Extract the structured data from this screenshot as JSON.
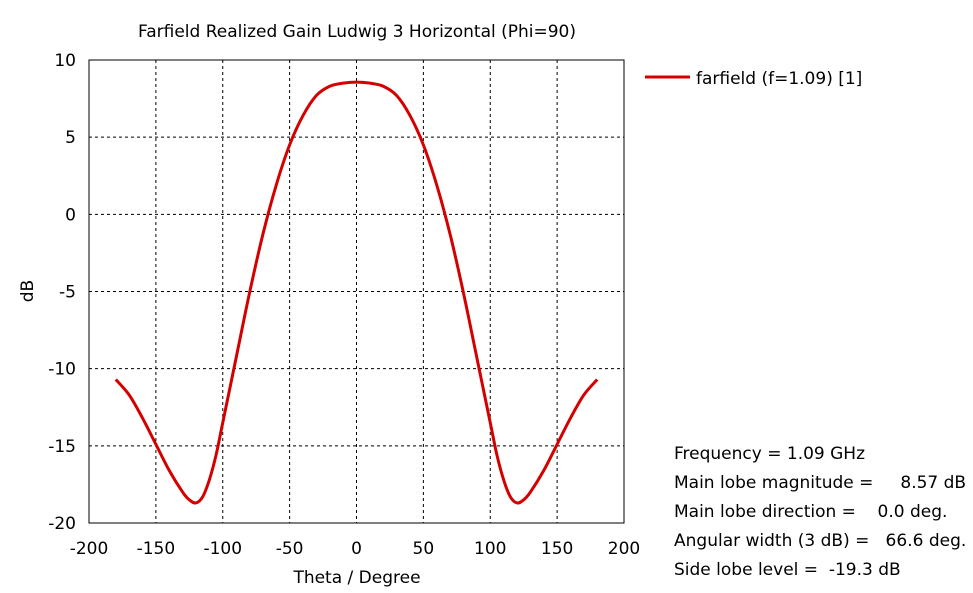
{
  "chart_data": {
    "type": "line",
    "title": "Farfield Realized Gain Ludwig 3 Horizontal (Phi=90)",
    "xlabel": "Theta / Degree",
    "ylabel": "dB",
    "xlim": [
      -200,
      200
    ],
    "ylim": [
      -20,
      10
    ],
    "xticks": [
      -200,
      -150,
      -100,
      -50,
      0,
      50,
      100,
      150,
      200
    ],
    "yticks": [
      10,
      5,
      0,
      -5,
      -10,
      -15,
      -20
    ],
    "xtick_labels": [
      "-200",
      "-150",
      "-100",
      "-50",
      "0",
      "50",
      "100",
      "150",
      "200"
    ],
    "ytick_labels": [
      "10",
      "5",
      "0",
      "-5",
      "-10",
      "-15",
      "-20"
    ],
    "grid": true,
    "legend_position": "top-right",
    "series": [
      {
        "name": "farfield (f=1.09) [1]",
        "color": "#d40000",
        "x": [
          -180,
          -170,
          -160,
          -150,
          -140,
          -130,
          -125,
          -120,
          -115,
          -110,
          -105,
          -100,
          -90,
          -80,
          -70,
          -60,
          -50,
          -40,
          -30,
          -20,
          -10,
          0,
          10,
          20,
          30,
          40,
          50,
          60,
          70,
          80,
          90,
          100,
          105,
          110,
          115,
          120,
          125,
          130,
          140,
          150,
          160,
          170,
          180
        ],
        "y": [
          -10.7,
          -11.7,
          -13.2,
          -14.9,
          -16.6,
          -18.0,
          -18.5,
          -18.7,
          -18.3,
          -17.2,
          -15.6,
          -13.5,
          -9.3,
          -5.1,
          -1.3,
          1.9,
          4.5,
          6.4,
          7.7,
          8.3,
          8.5,
          8.57,
          8.5,
          8.3,
          7.7,
          6.4,
          4.5,
          1.9,
          -1.3,
          -5.1,
          -9.3,
          -13.5,
          -15.6,
          -17.2,
          -18.3,
          -18.7,
          -18.5,
          -18.0,
          -16.6,
          -14.9,
          -13.2,
          -11.7,
          -10.7
        ]
      }
    ]
  },
  "info": {
    "line1": "Frequency = 1.09 GHz",
    "line2": "Main lobe magnitude =     8.57 dB",
    "line3": "Main lobe direction =    0.0 deg.",
    "line4": "Angular width (3 dB) =   66.6 deg.",
    "line5": "Side lobe level =  -19.3 dB"
  }
}
